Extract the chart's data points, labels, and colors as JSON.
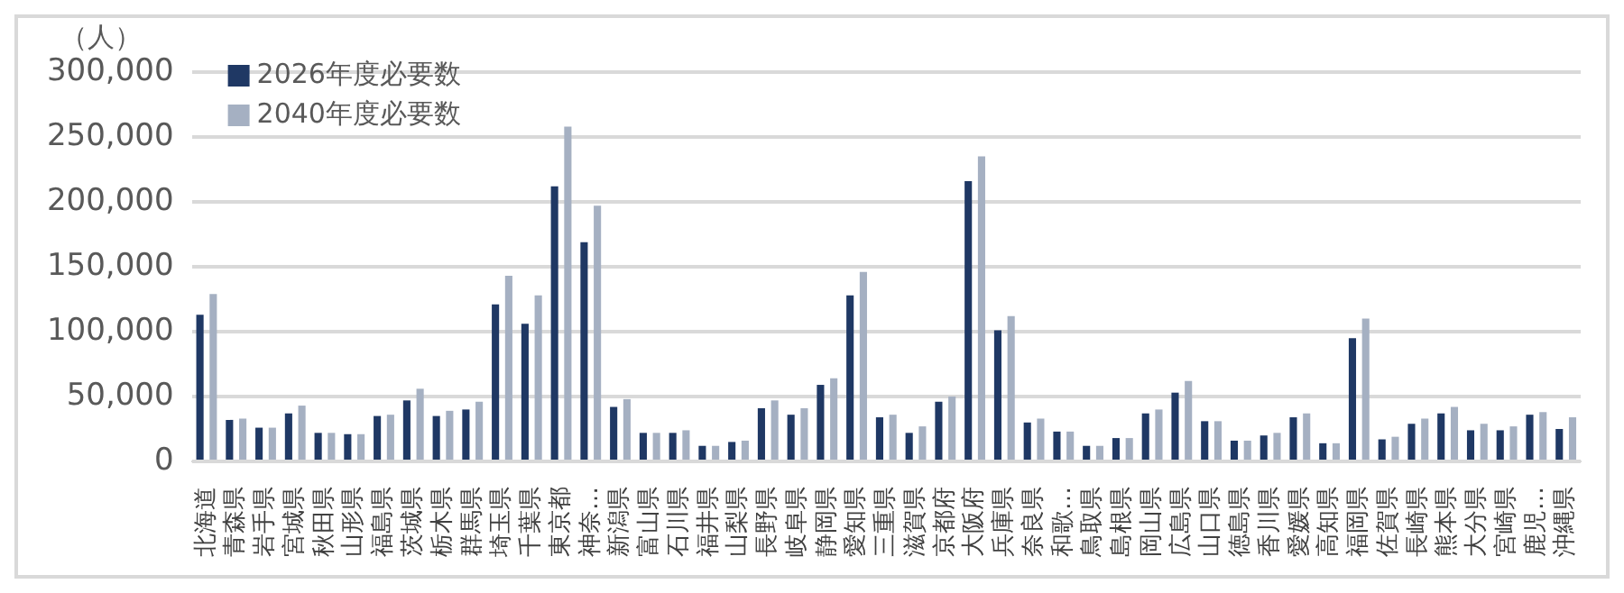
{
  "chart_data": {
    "type": "bar",
    "ylabel": "（人）",
    "categories": [
      "北海道",
      "青森県",
      "岩手県",
      "宮城県",
      "秋田県",
      "山形県",
      "福島県",
      "茨城県",
      "栃木県",
      "群馬県",
      "埼玉県",
      "千葉県",
      "東京都",
      "神奈…",
      "新潟県",
      "富山県",
      "石川県",
      "福井県",
      "山梨県",
      "長野県",
      "岐阜県",
      "静岡県",
      "愛知県",
      "三重県",
      "滋賀県",
      "京都府",
      "大阪府",
      "兵庫県",
      "奈良県",
      "和歌…",
      "鳥取県",
      "島根県",
      "岡山県",
      "広島県",
      "山口県",
      "徳島県",
      "香川県",
      "愛媛県",
      "高知県",
      "福岡県",
      "佐賀県",
      "長崎県",
      "熊本県",
      "大分県",
      "宮崎県",
      "鹿児…",
      "沖縄県"
    ],
    "series": [
      {
        "name": "2026年度必要数",
        "color": "#1f3864",
        "values": [
          113000,
          32000,
          26000,
          37000,
          22000,
          21000,
          35000,
          47000,
          35000,
          40000,
          121000,
          106000,
          212000,
          169000,
          42000,
          22000,
          22000,
          12000,
          15000,
          41000,
          36000,
          59000,
          128000,
          34000,
          22000,
          46000,
          216000,
          101000,
          30000,
          23000,
          12000,
          18000,
          37000,
          53000,
          31000,
          16000,
          20000,
          34000,
          14000,
          95000,
          17000,
          29000,
          37000,
          24000,
          24000,
          36000,
          25000
        ]
      },
      {
        "name": "2040年度必要数",
        "color": "#a5b0c2",
        "values": [
          129000,
          33000,
          26000,
          43000,
          22000,
          21000,
          36000,
          56000,
          39000,
          46000,
          143000,
          128000,
          258000,
          197000,
          48000,
          22000,
          24000,
          12000,
          16000,
          47000,
          41000,
          64000,
          146000,
          36000,
          27000,
          50000,
          235000,
          112000,
          33000,
          23000,
          12000,
          18000,
          40000,
          62000,
          31000,
          16000,
          22000,
          37000,
          14000,
          110000,
          19000,
          33000,
          42000,
          29000,
          27000,
          38000,
          34000
        ]
      }
    ],
    "ylim": [
      0,
      300000
    ],
    "yticks": [
      0,
      {
        "value": 50000,
        "label": "50,000"
      },
      {
        "value": 100000,
        "label": "100,000"
      },
      {
        "value": 150000,
        "label": "150,000"
      },
      {
        "value": 200000,
        "label": "200,000"
      },
      {
        "value": 250000,
        "label": "250,000"
      },
      {
        "value": 300000,
        "label": "300,000"
      }
    ],
    "grid": "y",
    "legend": "top left"
  }
}
